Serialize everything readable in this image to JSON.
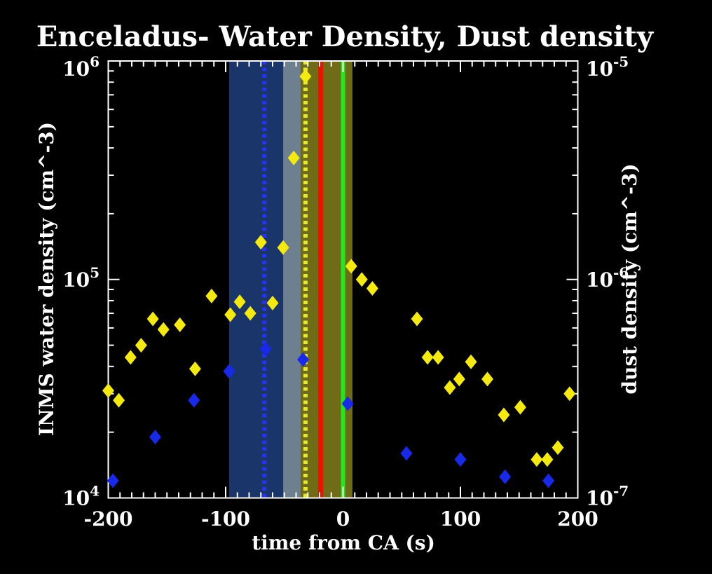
{
  "title": "Enceladus- Water Density, Dust density",
  "colors": {
    "background": "#000000",
    "frame": "#ffffff",
    "text": "#ffffff",
    "water_marker": "#f4e911",
    "dust_marker": "#1829e8",
    "band_blue": "#1a3569",
    "band_gray": "#6e8090",
    "band_olive": "#6f6b17",
    "line_red": "#f01000",
    "line_green": "#1fe81f",
    "line_blue_dotted": "#2634f0",
    "line_yellow_dotted": "#e8e832"
  },
  "axes": {
    "x": {
      "label": "time from CA (s)",
      "min": -200,
      "max": 200,
      "tick_labels": [
        "-200",
        "-100",
        "0",
        "100",
        "200"
      ],
      "tick_values": [
        -200,
        -100,
        0,
        100,
        200
      ],
      "minor_tick_step": 10
    },
    "y_left": {
      "label": "INMS water density (cm^-3)",
      "scale": "log",
      "tick_labels": [
        "10^6",
        "10^5",
        "10^4"
      ],
      "tick_values": [
        1000000.0,
        100000.0,
        10000.0
      ]
    },
    "y_right": {
      "label": "dust density (cm^-3)",
      "scale": "log",
      "tick_labels": [
        "10^-5",
        "10^-6",
        "10^-7"
      ],
      "tick_values": [
        1e-05,
        1e-06,
        1e-07
      ]
    }
  },
  "chart_data": {
    "type": "scatter",
    "title": "Enceladus- Water Density, Dust density",
    "xlabel": "time from CA (s)",
    "ylabel_left": "INMS water density (cm^-3)",
    "ylabel_right": "dust density (cm^-3)",
    "xlim": [
      -200,
      200
    ],
    "ylim_left": [
      10000.0,
      1000000.0
    ],
    "ylim_right": [
      1e-07,
      1e-05
    ],
    "grid": false,
    "legend": "none",
    "series": [
      {
        "name": "INMS water density",
        "axis": "left",
        "marker": "diamond",
        "color": "#f4e911",
        "points": [
          [
            -200,
            31000
          ],
          [
            -191,
            28000
          ],
          [
            -181,
            44000
          ],
          [
            -172,
            50000
          ],
          [
            -162,
            66000
          ],
          [
            -153,
            59000
          ],
          [
            -139,
            62000
          ],
          [
            -126,
            39000
          ],
          [
            -112,
            84000
          ],
          [
            -96,
            69000
          ],
          [
            -88,
            79000
          ],
          [
            -79,
            70000
          ],
          [
            -70,
            148000
          ],
          [
            -60,
            78000
          ],
          [
            -51,
            140000
          ],
          [
            -42,
            360000
          ],
          [
            -32,
            850000
          ],
          [
            7,
            115000
          ],
          [
            16,
            100000
          ],
          [
            25,
            91000
          ],
          [
            63,
            66000
          ],
          [
            72,
            44000
          ],
          [
            81,
            44000
          ],
          [
            91,
            32000
          ],
          [
            99,
            35000
          ],
          [
            109,
            42000
          ],
          [
            123,
            35000
          ],
          [
            137,
            24000
          ],
          [
            151,
            26000
          ],
          [
            165,
            15000
          ],
          [
            174,
            15000
          ],
          [
            183,
            17000
          ],
          [
            193,
            30000
          ]
        ]
      },
      {
        "name": "dust density",
        "axis": "right",
        "marker": "diamond",
        "color": "#1829e8",
        "points": [
          [
            -196,
            1.2e-07
          ],
          [
            -160,
            1.9e-07
          ],
          [
            -127,
            2.8e-07
          ],
          [
            -97,
            3.8e-07
          ],
          [
            -66,
            4.8e-07
          ],
          [
            -34,
            4.3e-07
          ],
          [
            4,
            2.7e-07
          ],
          [
            54,
            1.6e-07
          ],
          [
            100,
            1.5e-07
          ],
          [
            138,
            1.25e-07
          ],
          [
            175,
            1.2e-07
          ]
        ]
      }
    ],
    "bands": [
      {
        "name": "band-blue",
        "x0": -97,
        "x1": -51,
        "color": "#1a3569"
      },
      {
        "name": "band-gray",
        "x0": -51,
        "x1": -36,
        "color": "#6e8090"
      },
      {
        "name": "band-olive",
        "x0": -36,
        "x1": 8,
        "color": "#6f6b17"
      }
    ],
    "vlines": [
      {
        "name": "blue-dotted-line",
        "x": -67,
        "style": "dotted",
        "color": "#2634f0",
        "width": 6
      },
      {
        "name": "yellow-dotted-line",
        "x": -32,
        "style": "dotted",
        "color": "#e8e832",
        "width": 6
      },
      {
        "name": "red-line",
        "x": -19,
        "style": "solid",
        "color": "#f01000",
        "width": 7
      },
      {
        "name": "green-line",
        "x": 0,
        "style": "solid",
        "color": "#1fe81f",
        "width": 6
      }
    ]
  }
}
